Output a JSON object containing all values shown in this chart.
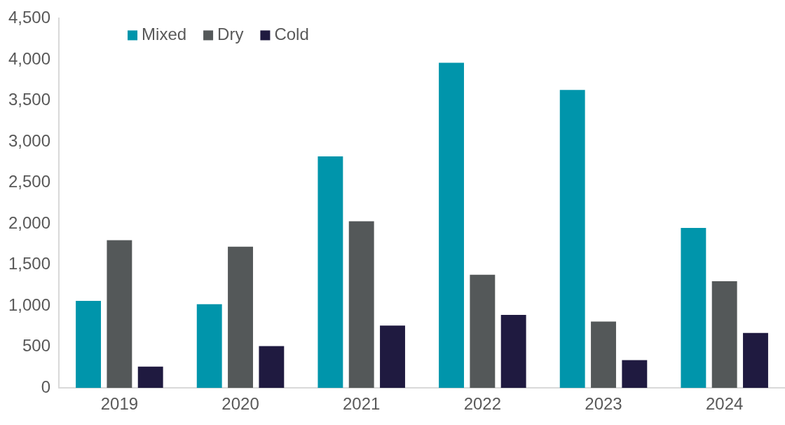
{
  "chart_data": {
    "type": "bar",
    "categories": [
      "2019",
      "2020",
      "2021",
      "2022",
      "2023",
      "2024"
    ],
    "series": [
      {
        "name": "Mixed",
        "color": "#0095ab",
        "values": [
          1060,
          1020,
          2820,
          3960,
          3630,
          1950
        ]
      },
      {
        "name": "Dry",
        "color": "#545859",
        "values": [
          1800,
          1720,
          2030,
          1380,
          810,
          1300
        ]
      },
      {
        "name": "Cold",
        "color": "#1f1a40",
        "values": [
          260,
          510,
          760,
          890,
          340,
          670
        ]
      }
    ],
    "ylim": [
      0,
      4500
    ],
    "yticks": [
      0,
      500,
      {
        "value": 1000,
        "label": "1,000"
      },
      {
        "value": 1500,
        "label": "1,500"
      },
      {
        "value": 2000,
        "label": "2,000"
      },
      {
        "value": 2500,
        "label": "2,500"
      },
      {
        "value": 3000,
        "label": "3,000"
      },
      {
        "value": 3500,
        "label": "3,500"
      },
      {
        "value": 4000,
        "label": "4,000"
      },
      {
        "value": 4500,
        "label": "4,500"
      }
    ],
    "grid": false,
    "legend": "top left"
  }
}
